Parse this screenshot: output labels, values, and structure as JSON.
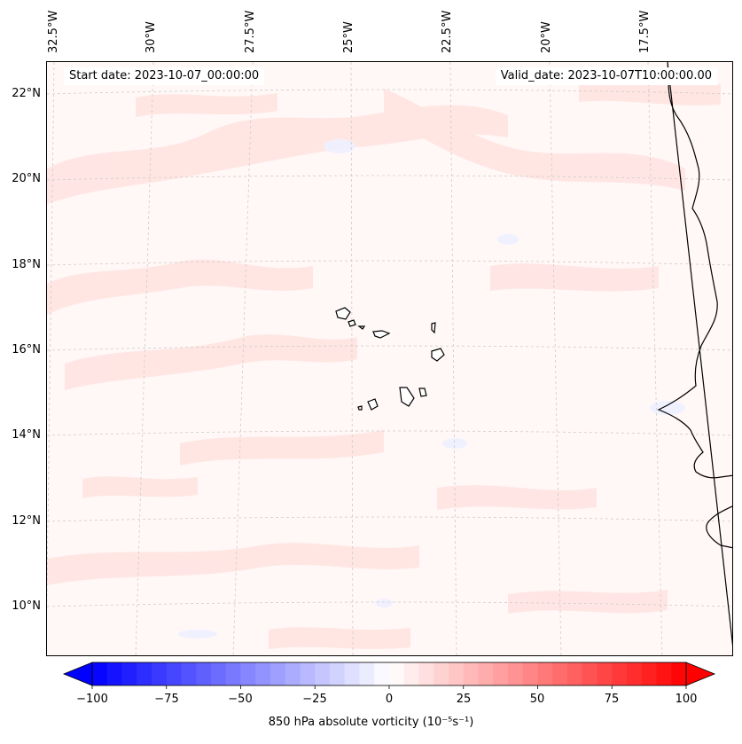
{
  "map": {
    "start_date": "Start date: 2023-10-07_00:00:00",
    "valid_date": "Valid_date: 2023-10-07T10:00:00.00",
    "lon_labels": [
      "32.5°W",
      "30°W",
      "27.5°W",
      "25°W",
      "22.5°W",
      "20°W",
      "17.5°W"
    ],
    "lat_labels": [
      "22°N",
      "20°N",
      "18°N",
      "16°N",
      "14°N",
      "12°N",
      "10°N"
    ],
    "features": [
      "Cape Verde islands",
      "West African coastline"
    ]
  },
  "colorbar": {
    "title": "850 hPa absolute vorticity (10⁻⁵s⁻¹)",
    "ticks": [
      "−100",
      "−75",
      "−50",
      "−25",
      "0",
      "25",
      "50",
      "75",
      "100"
    ],
    "min": -100,
    "max": 100,
    "low_color": "#0000ff",
    "mid_color": "#ffffff",
    "high_color": "#ff0000"
  },
  "colors": {
    "field_background": "#fff8f7",
    "weak_positive": "#ffe6e4",
    "weak_negative": "#f2f4ff",
    "coastline": "#000000",
    "gridline": "#cccccc"
  }
}
